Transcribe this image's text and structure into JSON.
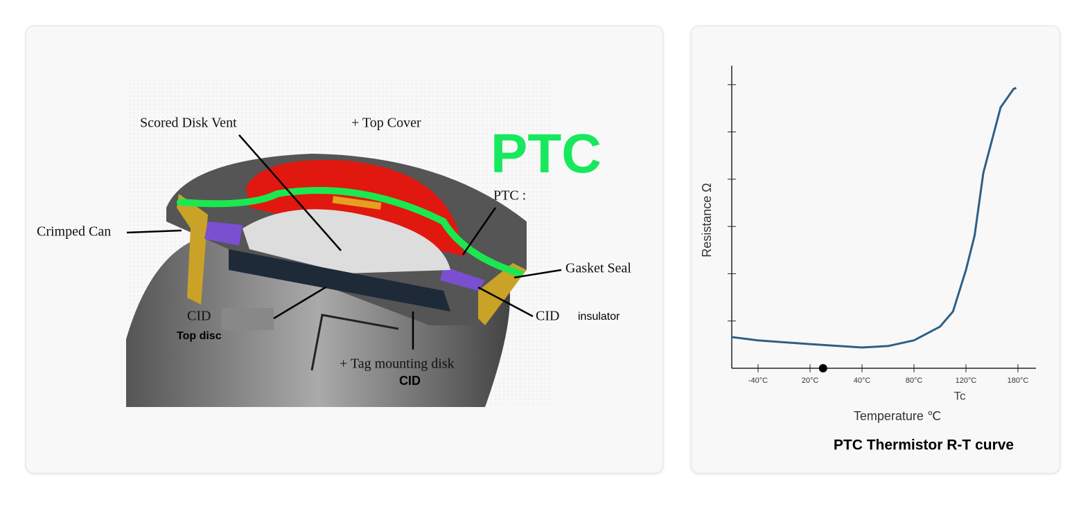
{
  "diagram": {
    "labels": [
      "Scored Disk Vent",
      "+ Top Cover",
      "PTC",
      "PTC :",
      "Crimped Can",
      "Gasket Seal",
      "CID",
      "Top disc",
      "CID",
      "insulator",
      "+ Tag mounting disk",
      "CID"
    ]
  },
  "chart_data": {
    "type": "line",
    "title": "PTC Thermistor R-T curve",
    "x_label": "Temperature ℃",
    "y_label": "Resistance Ω",
    "annotation": "Tc",
    "x": [
      -72,
      -40,
      20,
      40,
      60,
      80,
      100,
      110,
      120,
      130,
      140,
      160,
      175,
      178
    ],
    "values": [
      0.66,
      0.59,
      0.51,
      0.44,
      0.47,
      0.59,
      0.88,
      1.2,
      2.08,
      2.81,
      4.13,
      5.52,
      5.91,
      5.93
    ],
    "color": "#2e5f86",
    "xlim": [
      -72,
      198
    ],
    "xticks": [
      {
        "value": -40,
        "label": "-40°C"
      },
      {
        "value": 20,
        "label": "20°C"
      },
      {
        "value": 40,
        "label": "40°C"
      },
      {
        "value": 80,
        "label": "80°C"
      },
      {
        "value": 120,
        "label": "120°C"
      },
      {
        "value": 180,
        "label": "180°C"
      }
    ],
    "ylim": [
      0,
      6.4
    ],
    "yticks": [
      1,
      2,
      3,
      4,
      5,
      6
    ],
    "marker": {
      "x": 25,
      "y": 0
    }
  }
}
